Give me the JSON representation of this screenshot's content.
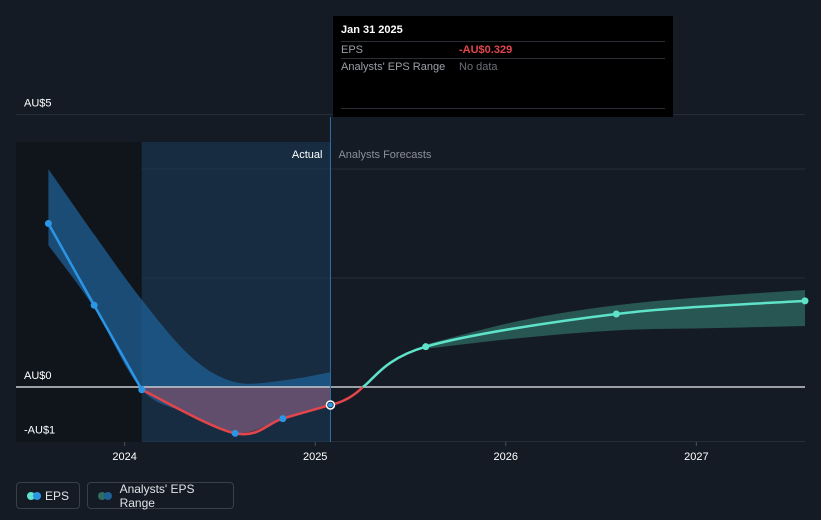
{
  "tooltip": {
    "date": "Jan 31 2025",
    "eps_label": "EPS",
    "eps_value": "-AU$0.329",
    "range_label": "Analysts' EPS Range",
    "range_value": "No data"
  },
  "section_labels": {
    "actual": "Actual",
    "forecast": "Analysts Forecasts"
  },
  "legend": {
    "eps": "EPS",
    "range": "Analysts' EPS Range"
  },
  "colors": {
    "background": "#151b24",
    "eps_actual": "#2b95e6",
    "eps_negative": "#e2464b",
    "eps_forecast": "#5ee2c9",
    "range_actual": "#1f5f94",
    "range_forecast": "#2e6b63"
  },
  "chart_data": {
    "type": "line",
    "y_tick_labels": [
      "AU$5",
      "AU$0",
      "-AU$1"
    ],
    "x_tick_labels": [
      "2024",
      "2025",
      "2026",
      "2027"
    ],
    "ylim": [
      -1,
      5
    ],
    "xlim": [
      2023.43,
      2027.57
    ],
    "grid": true,
    "legend_position": "bottom-left",
    "eps_actual": [
      {
        "x": 2023.6,
        "y": 3.0
      },
      {
        "x": 2023.84,
        "y": 1.5
      },
      {
        "x": 2024.09,
        "y": -0.05
      },
      {
        "x": 2024.58,
        "y": -0.85
      },
      {
        "x": 2024.83,
        "y": -0.58
      },
      {
        "x": 2025.08,
        "y": -0.33
      }
    ],
    "eps_forecast": [
      {
        "x": 2025.08,
        "y": -0.33
      },
      {
        "x": 2025.58,
        "y": 0.74
      },
      {
        "x": 2026.58,
        "y": 1.34
      },
      {
        "x": 2027.57,
        "y": 1.58
      }
    ],
    "range_actual": {
      "x": [
        2023.6,
        2023.84,
        2024.09,
        2024.35,
        2024.58,
        2024.83,
        2025.08
      ],
      "high": [
        4.0,
        2.8,
        1.6,
        0.55,
        0.09,
        0.12,
        0.27
      ],
      "low": [
        2.6,
        1.45,
        -0.05,
        -0.5,
        -0.85,
        -0.6,
        -0.33
      ]
    },
    "range_forecast": {
      "x": [
        2025.58,
        2026.08,
        2026.58,
        2027.08,
        2027.57
      ],
      "high": [
        0.78,
        1.22,
        1.5,
        1.66,
        1.78
      ],
      "low": [
        0.7,
        0.9,
        1.04,
        1.08,
        1.12
      ]
    },
    "current_x": 2025.08,
    "forecast_start_x": 2024.09
  }
}
